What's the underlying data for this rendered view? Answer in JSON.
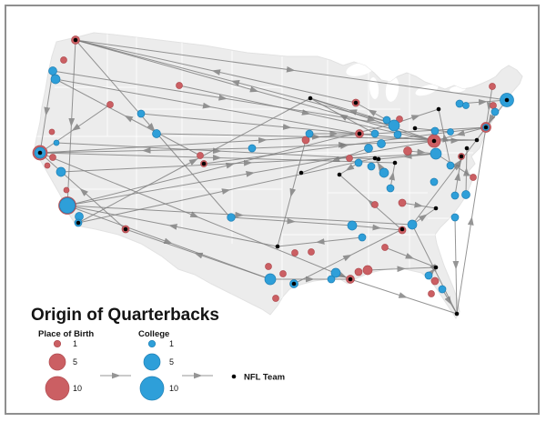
{
  "title": "Origin of Quarterbacks",
  "legend": {
    "birth_header": "Place of Birth",
    "college_header": "College",
    "nfl_label": "NFL Team",
    "sizes": [
      {
        "label": "1",
        "r": 3.7
      },
      {
        "label": "5",
        "r": 9
      },
      {
        "label": "10",
        "r": 13
      }
    ]
  },
  "colors": {
    "birth": "#cb5f63",
    "birth_stroke": "#b04b50",
    "college": "#2e9fd9",
    "college_stroke": "#1f7fb4",
    "nfl": "#000000",
    "flow": "#7b7b7b",
    "map_fill": "#ececec",
    "frame": "#8f8f8f"
  },
  "chart_data": {
    "type": "scatter",
    "description": "Flow map of NFL quarterback origins on a US map: place of birth (red, sized 1-10), college (blue, sized 1-10), NFL team (black dot); gray arrows show movement.",
    "points": [
      [
        83,
        44,
        4.5,
        "b"
      ],
      [
        70,
        66,
        3.5,
        "b"
      ],
      [
        121,
        115,
        3.5,
        "b"
      ],
      [
        197,
        94,
        3.5,
        "b"
      ],
      [
        57,
        145,
        3,
        "b"
      ],
      [
        58,
        173,
        3.5,
        "b"
      ],
      [
        52,
        182,
        3,
        "b"
      ],
      [
        44,
        168,
        8,
        "b"
      ],
      [
        73,
        209,
        3,
        "b"
      ],
      [
        74,
        226,
        9.5,
        "b"
      ],
      [
        138,
        252,
        4,
        "b"
      ],
      [
        220,
        171,
        3.5,
        "b"
      ],
      [
        224,
        180,
        3.5,
        "b"
      ],
      [
        391,
        113,
        4,
        "b"
      ],
      [
        395,
        147,
        4.5,
        "b"
      ],
      [
        336,
        154,
        4,
        "b"
      ],
      [
        384,
        174,
        3.5,
        "b"
      ],
      [
        448,
        166,
        4.5,
        "b"
      ],
      [
        477,
        155,
        7,
        "b"
      ],
      [
        541,
        95,
        3.5,
        "b"
      ],
      [
        542,
        116,
        3.5,
        "b"
      ],
      [
        534,
        140,
        5.5,
        "b"
      ],
      [
        507,
        172,
        3.5,
        "b"
      ],
      [
        520,
        195,
        3.5,
        "b"
      ],
      [
        439,
        131,
        3.5,
        "b"
      ],
      [
        442,
        223,
        4,
        "b"
      ],
      [
        412,
        225,
        3.5,
        "b"
      ],
      [
        423,
        272,
        3.5,
        "b"
      ],
      [
        442,
        253,
        4,
        "b"
      ],
      [
        324,
        278,
        3.5,
        "b"
      ],
      [
        342,
        277,
        3.5,
        "b"
      ],
      [
        295,
        293,
        3.5,
        "b"
      ],
      [
        311,
        301,
        3.5,
        "b"
      ],
      [
        303,
        328,
        3.5,
        "b"
      ],
      [
        385,
        307,
        4.5,
        "b"
      ],
      [
        394,
        299,
        4,
        "b"
      ],
      [
        404,
        297,
        5,
        "b"
      ],
      [
        478,
        309,
        4,
        "b"
      ],
      [
        474,
        323,
        3.5,
        "b"
      ],
      [
        58,
        78,
        4.5,
        "c"
      ],
      [
        61,
        87,
        5,
        "c"
      ],
      [
        62,
        157,
        3,
        "c"
      ],
      [
        44,
        168,
        6,
        "c"
      ],
      [
        67,
        189,
        5,
        "c"
      ],
      [
        74,
        226,
        8.5,
        "c"
      ],
      [
        87,
        238,
        4.5,
        "c"
      ],
      [
        86,
        245,
        4,
        "c"
      ],
      [
        155,
        125,
        4,
        "c"
      ],
      [
        172,
        147,
        4.5,
        "c"
      ],
      [
        254,
        239,
        4.3,
        "c"
      ],
      [
        277,
        163,
        4,
        "c"
      ],
      [
        340,
        147,
        4,
        "c"
      ],
      [
        297,
        307,
        6,
        "c"
      ],
      [
        323,
        312,
        4.5,
        "c"
      ],
      [
        364,
        307,
        4,
        "c"
      ],
      [
        369,
        300,
        5,
        "c"
      ],
      [
        387,
        248,
        5,
        "c"
      ],
      [
        398,
        261,
        4,
        "c"
      ],
      [
        453,
        247,
        5,
        "c"
      ],
      [
        471,
        303,
        4,
        "c"
      ],
      [
        486,
        318,
        4,
        "c"
      ],
      [
        500,
        239,
        4,
        "c"
      ],
      [
        425,
        132,
        4,
        "c"
      ],
      [
        433,
        138,
        6,
        "c"
      ],
      [
        437,
        148,
        4,
        "c"
      ],
      [
        412,
        147,
        4,
        "c"
      ],
      [
        419,
        158,
        4.5,
        "c"
      ],
      [
        405,
        163,
        4.5,
        "c"
      ],
      [
        479,
        169,
        6,
        "c"
      ],
      [
        478,
        144,
        4,
        "c"
      ],
      [
        394,
        179,
        4,
        "c"
      ],
      [
        408,
        183,
        4,
        "c"
      ],
      [
        422,
        190,
        5,
        "c"
      ],
      [
        429,
        207,
        4,
        "c"
      ],
      [
        477,
        200,
        4,
        "c"
      ],
      [
        495,
        182,
        4,
        "c"
      ],
      [
        495,
        145,
        3.5,
        "c"
      ],
      [
        505,
        114,
        4,
        "c"
      ],
      [
        512,
        116,
        3.5,
        "c"
      ],
      [
        544,
        123,
        4,
        "c"
      ],
      [
        557,
        110,
        7.5,
        "c"
      ],
      [
        534,
        140,
        3.5,
        "c"
      ],
      [
        500,
        215,
        4,
        "c"
      ],
      [
        512,
        214,
        4.5,
        "c"
      ],
      [
        83,
        44,
        2.3,
        "n"
      ],
      [
        341,
        108,
        2.3,
        "n"
      ],
      [
        391,
        113,
        2.3,
        "n"
      ],
      [
        482,
        120,
        2.3,
        "n"
      ],
      [
        456,
        141,
        2.3,
        "n"
      ],
      [
        534,
        140,
        2.3,
        "n"
      ],
      [
        557,
        110,
        2.3,
        "n"
      ],
      [
        477,
        155,
        2.3,
        "n"
      ],
      [
        524,
        154,
        2.3,
        "n"
      ],
      [
        513,
        163,
        2.3,
        "n"
      ],
      [
        412,
        174,
        2.3,
        "n"
      ],
      [
        434,
        179,
        2.3,
        "n"
      ],
      [
        416,
        175,
        2.3,
        "n"
      ],
      [
        331,
        190,
        2.3,
        "n"
      ],
      [
        373,
        192,
        2.3,
        "n"
      ],
      [
        507,
        172,
        2.3,
        "n"
      ],
      [
        479,
        229,
        2.3,
        "n"
      ],
      [
        305,
        271,
        2.3,
        "n"
      ],
      [
        323,
        312,
        2.3,
        "n"
      ],
      [
        442,
        252,
        2.3,
        "n"
      ],
      [
        86,
        245,
        2.3,
        "n"
      ],
      [
        138,
        252,
        2.3,
        "n"
      ],
      [
        224,
        180,
        2.3,
        "n"
      ],
      [
        44,
        168,
        2.3,
        "n"
      ],
      [
        385,
        307,
        2.3,
        "n"
      ],
      [
        479,
        294,
        2.3,
        "n"
      ],
      [
        502,
        345,
        2.3,
        "n"
      ],
      [
        395,
        147,
        2.3,
        "n"
      ]
    ],
    "flows": [
      [
        433,
        136,
        83,
        44
      ],
      [
        83,
        44,
        557,
        110
      ],
      [
        83,
        44,
        477,
        155
      ],
      [
        83,
        44,
        252,
        238
      ],
      [
        83,
        44,
        74,
        226
      ],
      [
        44,
        168,
        534,
        140
      ],
      [
        44,
        168,
        434,
        179
      ],
      [
        44,
        168,
        385,
        307
      ],
      [
        138,
        252,
        44,
        168
      ],
      [
        61,
        87,
        395,
        147
      ],
      [
        74,
        226,
        477,
        155
      ],
      [
        74,
        226,
        297,
        307
      ],
      [
        74,
        226,
        453,
        247
      ],
      [
        74,
        226,
        433,
        136
      ],
      [
        86,
        245,
        412,
        174
      ],
      [
        86,
        245,
        341,
        108
      ],
      [
        58,
        78,
        44,
        168
      ],
      [
        121,
        115,
        44,
        168
      ],
      [
        197,
        94,
        477,
        155
      ],
      [
        220,
        171,
        61,
        87
      ],
      [
        224,
        180,
        534,
        140
      ],
      [
        155,
        125,
        477,
        155
      ],
      [
        172,
        147,
        524,
        154
      ],
      [
        277,
        163,
        44,
        168
      ],
      [
        305,
        271,
        74,
        226
      ],
      [
        391,
        113,
        83,
        44
      ],
      [
        341,
        108,
        477,
        155
      ],
      [
        297,
        307,
        385,
        307
      ],
      [
        323,
        312,
        442,
        252
      ],
      [
        385,
        307,
        502,
        345
      ],
      [
        404,
        297,
        479,
        294
      ],
      [
        369,
        300,
        385,
        307
      ],
      [
        453,
        247,
        502,
        345
      ],
      [
        453,
        247,
        479,
        229
      ],
      [
        442,
        253,
        373,
        192
      ],
      [
        500,
        239,
        502,
        345
      ],
      [
        471,
        303,
        479,
        294
      ],
      [
        486,
        318,
        502,
        345
      ],
      [
        433,
        136,
        482,
        120
      ],
      [
        433,
        136,
        341,
        108
      ],
      [
        505,
        114,
        557,
        110
      ],
      [
        541,
        95,
        534,
        140
      ],
      [
        534,
        140,
        477,
        155
      ],
      [
        544,
        123,
        534,
        140
      ],
      [
        495,
        145,
        456,
        141
      ],
      [
        477,
        155,
        524,
        154
      ],
      [
        448,
        166,
        479,
        169
      ],
      [
        429,
        207,
        434,
        179
      ],
      [
        422,
        190,
        412,
        174
      ],
      [
        442,
        223,
        479,
        229
      ],
      [
        500,
        215,
        507,
        172
      ],
      [
        512,
        214,
        513,
        163
      ],
      [
        495,
        182,
        482,
        120
      ],
      [
        520,
        195,
        479,
        169
      ],
      [
        405,
        163,
        331,
        190
      ],
      [
        394,
        179,
        373,
        192
      ],
      [
        412,
        147,
        341,
        108
      ],
      [
        425,
        132,
        391,
        113
      ],
      [
        336,
        154,
        305,
        271
      ],
      [
        340,
        147,
        395,
        147
      ],
      [
        387,
        248,
        442,
        253
      ],
      [
        398,
        261,
        305,
        271
      ],
      [
        423,
        272,
        479,
        294
      ],
      [
        502,
        345,
        534,
        140
      ],
      [
        297,
        307,
        138,
        252
      ],
      [
        453,
        247,
        557,
        110
      ],
      [
        62,
        157,
        416,
        175
      ],
      [
        67,
        189,
        479,
        169
      ],
      [
        58,
        78,
        433,
        138
      ],
      [
        479,
        169,
        416,
        175
      ],
      [
        254,
        239,
        387,
        248
      ],
      [
        277,
        163,
        477,
        155
      ]
    ]
  }
}
